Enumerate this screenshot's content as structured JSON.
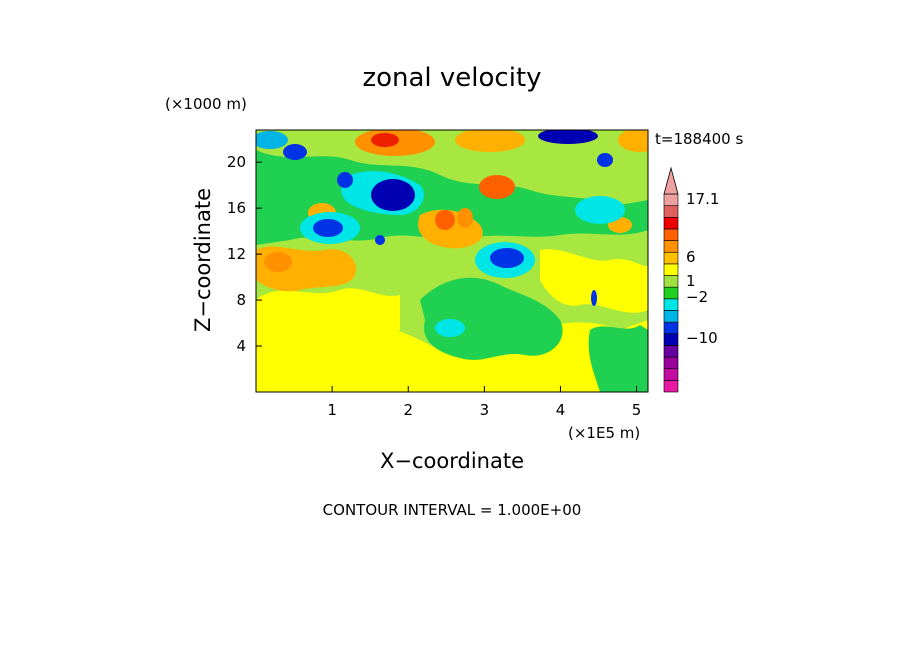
{
  "chart_data": {
    "type": "heatmap",
    "title": "zonal velocity",
    "xlabel": "X−coordinate",
    "ylabel": "Z−coordinate",
    "x_unit": "(×1E5 m)",
    "y_unit": "(×1000 m)",
    "time_label": "t=188400 s",
    "footer": "CONTOUR INTERVAL = 1.000E+00",
    "xlim": [
      0,
      5.15
    ],
    "ylim": [
      0,
      22.8
    ],
    "x_ticks": [
      "1",
      "2",
      "3",
      "4",
      "5"
    ],
    "y_ticks": [
      "4",
      "8",
      "12",
      "16",
      "20"
    ],
    "colorbar": {
      "labels": [
        "17.1",
        "6",
        "1",
        "−2",
        "−10"
      ],
      "colors": [
        "#e61aa3",
        "#c00ca0",
        "#990099",
        "#6600a0",
        "#0000b3",
        "#0032e6",
        "#00b4e6",
        "#00e6e6",
        "#20d020",
        "#a0e040",
        "#ffff00",
        "#ffc000",
        "#ff9000",
        "#ff6000",
        "#ee0000",
        "#e06060",
        "#f0a0a0"
      ]
    },
    "field_description": "Contoured zonal velocity field over X (0–5.15×10^5 m) and Z (0–22.8×10^3 m); mostly weak flow (−1 to 2) near the surface, alternating positive (orange/red, up to ~10) and negative (blue, down to ~−6) cells above 10 km."
  }
}
